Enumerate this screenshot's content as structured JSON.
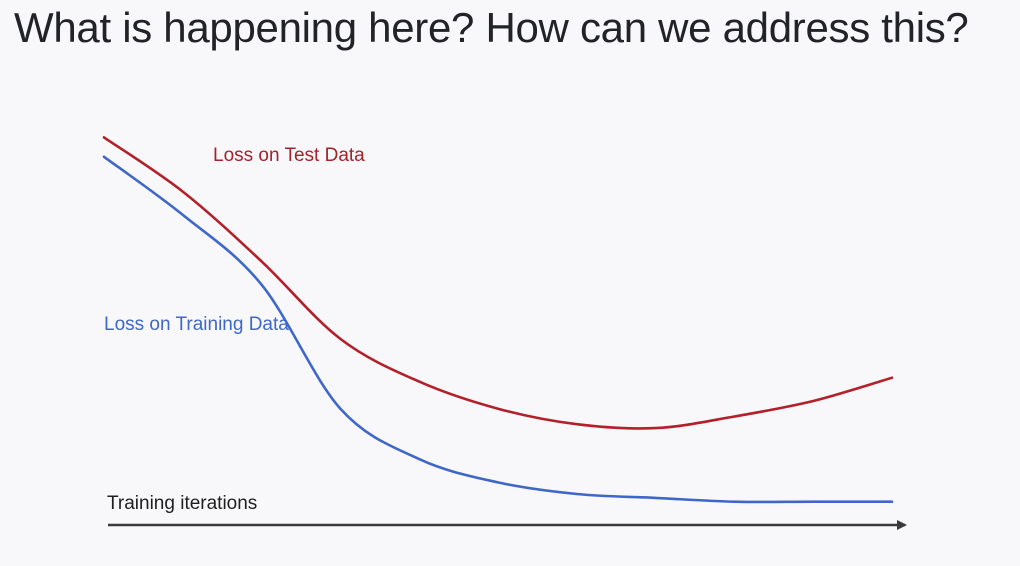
{
  "slide": {
    "title": "What is happening here? How can we address this?"
  },
  "chart_data": {
    "type": "line",
    "title": "",
    "xlabel": "Training iterations",
    "ylabel": "",
    "axes": {
      "x_arrow": true,
      "y_axis": false,
      "ticks": false,
      "grid": false
    },
    "x": [
      0,
      10,
      20,
      30,
      40,
      50,
      60,
      70,
      80,
      90,
      100
    ],
    "series": [
      {
        "name": "Loss on Test Data",
        "label": "Loss on Test Data",
        "color": "#b3202a",
        "values": [
          1.0,
          0.86,
          0.68,
          0.48,
          0.37,
          0.3,
          0.26,
          0.25,
          0.28,
          0.32,
          0.38
        ]
      },
      {
        "name": "Loss on Training Data",
        "label": "Loss on Training Data",
        "color": "#3f67c9",
        "values": [
          0.95,
          0.8,
          0.62,
          0.3,
          0.17,
          0.11,
          0.08,
          0.07,
          0.06,
          0.06,
          0.06
        ]
      }
    ],
    "ylim": [
      0,
      1.05
    ],
    "colors": {
      "axis": "#3a3a3a",
      "background": "#f8f8fa"
    }
  }
}
